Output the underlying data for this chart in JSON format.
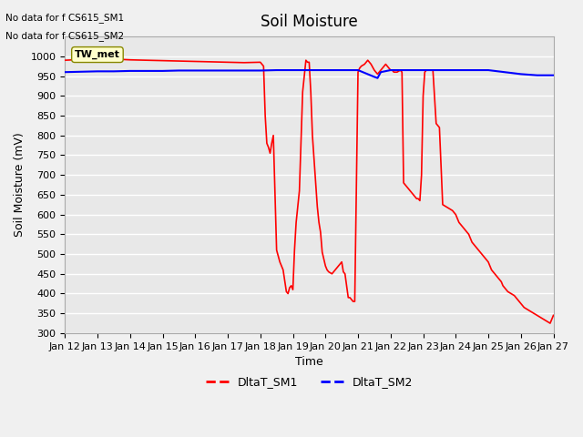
{
  "title": "Soil Moisture",
  "xlabel": "Time",
  "ylabel": "Soil Moisture (mV)",
  "ylim": [
    300,
    1050
  ],
  "yticks": [
    300,
    350,
    400,
    450,
    500,
    550,
    600,
    650,
    700,
    750,
    800,
    850,
    900,
    950,
    1000
  ],
  "xlim": [
    0,
    15
  ],
  "xtick_labels": [
    "Jan 12",
    "Jan 13",
    "Jan 14",
    "Jan 15",
    "Jan 16",
    "Jan 17",
    "Jan 18",
    "Jan 19",
    "Jan 20",
    "Jan 21",
    "Jan 22",
    "Jan 23",
    "Jan 24",
    "Jan 25",
    "Jan 26",
    "Jan 27"
  ],
  "text_no_data_1": "No data for f CS615_SM1",
  "text_no_data_2": "No data for f CS615_SM2",
  "legend_box_label": "TW_met",
  "legend_entries": [
    "DltaT_SM1",
    "DltaT_SM2"
  ],
  "line1_color": "#ff0000",
  "line2_color": "#0000ff",
  "background_color": "#e8e8e8",
  "grid_color": "#ffffff",
  "sm1_x": [
    0,
    0.5,
    1,
    1.5,
    2,
    2.5,
    3,
    3.5,
    4,
    4.5,
    5,
    5.5,
    6,
    6.05,
    6.1,
    6.15,
    6.2,
    6.25,
    6.3,
    6.35,
    6.4,
    6.5,
    6.6,
    6.7,
    6.8,
    6.85,
    6.9,
    6.95,
    7.0,
    7.05,
    7.1,
    7.15,
    7.2,
    7.3,
    7.4,
    7.45,
    7.5,
    7.55,
    7.6,
    7.65,
    7.7,
    7.75,
    7.8,
    7.85,
    7.9,
    8.0,
    8.05,
    8.1,
    8.2,
    8.3,
    8.4,
    8.5,
    8.55,
    8.6,
    8.7,
    8.75,
    8.8,
    8.85,
    8.9,
    9.0,
    9.05,
    9.1,
    9.2,
    9.3,
    9.35,
    9.4,
    9.5,
    9.55,
    9.6,
    9.65,
    9.7,
    9.75,
    9.8,
    9.85,
    9.9,
    9.95,
    10.0,
    10.05,
    10.1,
    10.2,
    10.3,
    10.35,
    10.4,
    10.45,
    10.5,
    10.55,
    10.6,
    10.65,
    10.7,
    10.75,
    10.8,
    10.85,
    10.9,
    10.95,
    11.0,
    11.05,
    11.1,
    11.2,
    11.3,
    11.4,
    11.5,
    11.6,
    11.7,
    11.8,
    11.9,
    12.0,
    12.05,
    12.1,
    12.2,
    12.3,
    12.4,
    12.45,
    12.5,
    12.6,
    12.7,
    12.8,
    12.9,
    13.0,
    13.05,
    13.1,
    13.2,
    13.3,
    13.4,
    13.45,
    13.5,
    13.55,
    13.6,
    13.7,
    13.8,
    13.85,
    13.9,
    13.95,
    14.0,
    14.05,
    14.1,
    14.2,
    14.3,
    14.4,
    14.5,
    14.6,
    14.7,
    14.8,
    14.9,
    15.0
  ],
  "sm1_y": [
    990,
    992,
    995,
    993,
    991,
    990,
    989,
    988,
    987,
    986,
    985,
    984,
    985,
    980,
    975,
    850,
    780,
    770,
    755,
    780,
    800,
    510,
    480,
    460,
    405,
    400,
    415,
    420,
    410,
    510,
    580,
    620,
    660,
    910,
    990,
    985,
    985,
    910,
    800,
    740,
    680,
    620,
    580,
    555,
    505,
    470,
    460,
    455,
    450,
    460,
    470,
    480,
    455,
    450,
    390,
    390,
    385,
    380,
    380,
    960,
    970,
    975,
    980,
    990,
    985,
    980,
    965,
    960,
    955,
    960,
    965,
    970,
    975,
    980,
    975,
    970,
    965,
    965,
    960,
    960,
    965,
    960,
    680,
    675,
    670,
    665,
    660,
    655,
    650,
    645,
    640,
    640,
    635,
    700,
    900,
    960,
    965,
    965,
    965,
    830,
    820,
    625,
    620,
    615,
    610,
    600,
    590,
    580,
    570,
    560,
    550,
    540,
    530,
    520,
    510,
    500,
    490,
    480,
    470,
    460,
    450,
    440,
    430,
    420,
    415,
    410,
    405,
    400,
    395,
    390,
    385,
    380,
    375,
    370,
    365,
    360,
    355,
    350,
    345,
    340,
    335,
    330,
    325,
    345
  ],
  "sm2_x": [
    0,
    0.5,
    1.0,
    1.5,
    2.0,
    2.5,
    3.0,
    3.5,
    4.0,
    4.5,
    5.0,
    5.5,
    6.0,
    6.5,
    7.0,
    7.5,
    8.0,
    8.5,
    9.0,
    9.5,
    9.6,
    9.7,
    10.0,
    10.5,
    11.0,
    11.5,
    12.0,
    12.5,
    13.0,
    13.5,
    14.0,
    14.5,
    15.0
  ],
  "sm2_y": [
    960,
    961,
    962,
    962,
    963,
    963,
    963,
    964,
    964,
    964,
    964,
    964,
    964,
    965,
    965,
    965,
    965,
    965,
    965,
    948,
    945,
    960,
    965,
    965,
    965,
    965,
    965,
    965,
    965,
    960,
    955,
    952,
    952
  ]
}
